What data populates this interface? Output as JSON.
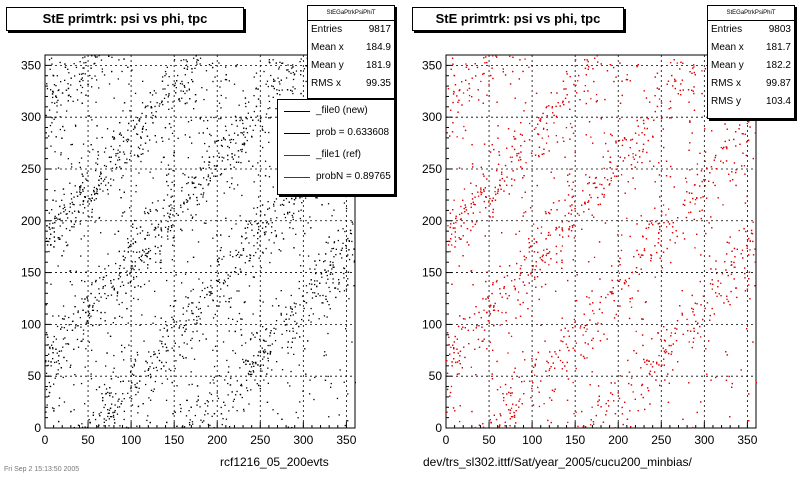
{
  "chart_data": [
    {
      "type": "scatter",
      "title": "StE primtrk: psi vs phi, tpc",
      "xlabel": "",
      "ylabel": "",
      "xlim": [
        0,
        360
      ],
      "ylim": [
        0,
        360
      ],
      "xticks": [
        "0",
        "50",
        "100",
        "150",
        "200",
        "250",
        "300",
        "350"
      ],
      "yticks": [
        "0",
        "50",
        "100",
        "150",
        "200",
        "250",
        "300",
        "350"
      ],
      "grid": true,
      "point_color": "#000000",
      "stats": {
        "header": "StEGaPtrkPsiPhiT",
        "rows": [
          {
            "label": "Entries",
            "value": "9817"
          },
          {
            "label": "Mean x",
            "value": "184.9"
          },
          {
            "label": "Mean y",
            "value": "181.9"
          },
          {
            "label": "RMS x",
            "value": "99.35"
          }
        ]
      },
      "legend": [
        {
          "label": "_file0 (new)",
          "color": "#000000"
        },
        {
          "label": "prob = 0.633608",
          "color": "#000000"
        },
        {
          "label": "_file1 (ref)",
          "color": "#cc0000"
        },
        {
          "label": "probN = 0.89765",
          "color": "#cc0000"
        }
      ],
      "footer": "rcf1216_05_200evts"
    },
    {
      "type": "scatter",
      "title": "StE primtrk: psi vs phi, tpc",
      "xlabel": "",
      "ylabel": "",
      "xlim": [
        0,
        360
      ],
      "ylim": [
        0,
        360
      ],
      "xticks": [
        "0",
        "50",
        "100",
        "150",
        "200",
        "250",
        "300",
        "350"
      ],
      "yticks": [
        "0",
        "50",
        "100",
        "150",
        "200",
        "250",
        "300",
        "350"
      ],
      "grid": true,
      "point_color": "#dd0000",
      "stats": {
        "header": "StEGaPtrkPsiPhiT",
        "rows": [
          {
            "label": "Entries",
            "value": "9803"
          },
          {
            "label": "Mean x",
            "value": "181.7"
          },
          {
            "label": "Mean y",
            "value": "182.2"
          },
          {
            "label": "RMS x",
            "value": "99.87"
          },
          {
            "label": "RMS y",
            "value": "103.4"
          }
        ]
      },
      "footer": "dev/trs_sl302.ittf/Sat/year_2005/cucu200_minbias/"
    }
  ],
  "corner_text": "Fri Sep 2 15:13:50 2005"
}
